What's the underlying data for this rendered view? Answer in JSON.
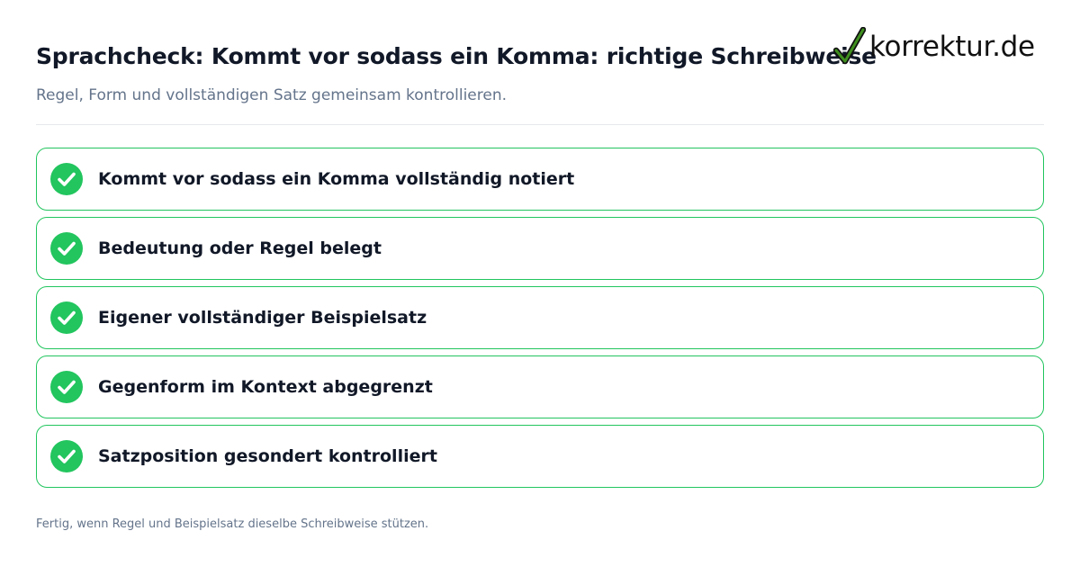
{
  "header": {
    "title": "Sprachcheck: Kommt vor sodass ein Komma: richtige Schreibweise",
    "subtitle": "Regel, Form und vollständigen Satz gemeinsam kontrollieren."
  },
  "logo": {
    "text": "korrektur.de",
    "icon": "checkmark-icon",
    "check_color": "#3f8f1f"
  },
  "checklist": {
    "accent_color": "#22c55e",
    "items": [
      {
        "label": "Kommt vor sodass ein Komma vollständig notiert",
        "checked": true
      },
      {
        "label": "Bedeutung oder Regel belegt",
        "checked": true
      },
      {
        "label": "Eigener vollständiger Beispielsatz",
        "checked": true
      },
      {
        "label": "Gegenform im Kontext abgegrenzt",
        "checked": true
      },
      {
        "label": "Satzposition gesondert kontrolliert",
        "checked": true
      }
    ]
  },
  "footer": {
    "note": "Fertig, wenn Regel und Beispielsatz dieselbe Schreibweise stützen."
  }
}
